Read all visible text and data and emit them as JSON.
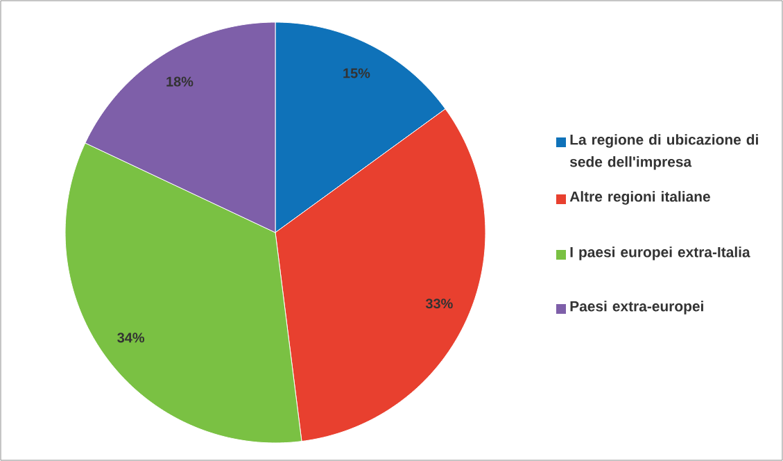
{
  "chart_data": {
    "type": "pie",
    "categories": [
      "La regione di ubicazione di sede dell'impresa",
      "Altre regioni italiane",
      "I paesi europei extra-Italia",
      "Paesi extra-europei"
    ],
    "values": [
      15,
      33,
      34,
      18
    ],
    "colors": [
      "#0f72b9",
      "#e8402f",
      "#7ac143",
      "#7e5fa9"
    ],
    "value_labels": [
      "15%",
      "33%",
      "34%",
      "18%"
    ],
    "legend": "right"
  }
}
